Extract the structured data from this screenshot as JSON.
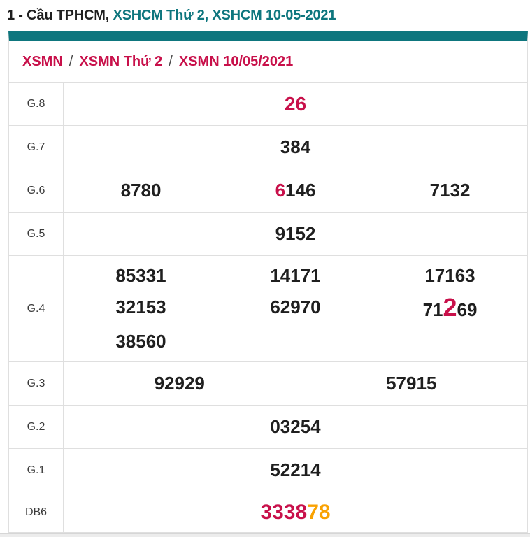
{
  "colors": {
    "teal": "#0e767e",
    "red": "#c8104a",
    "orange": "#f9a202",
    "number_black": "#1f1f1f",
    "border_gray": "#dfdfdf"
  },
  "title": {
    "segments": [
      {
        "text": "1 - Cầu TPHCM, ",
        "style": "dark",
        "link": false
      },
      {
        "text": "XSHCM Thứ 2, ",
        "style": "teal",
        "link": true
      },
      {
        "text": "XSHCM 10-05-2021",
        "style": "teal",
        "link": true
      }
    ]
  },
  "breadcrumb": {
    "separator": "/",
    "items": [
      "XSMN",
      "XSMN Thứ 2",
      "XSMN 10/05/2021"
    ]
  },
  "results_table": {
    "rows": [
      {
        "label": "G.8",
        "cols": 1,
        "size": "g8",
        "lines": [
          [
            [
              {
                "t": "26",
                "c": "red"
              }
            ]
          ]
        ]
      },
      {
        "label": "G.7",
        "cols": 1,
        "lines": [
          [
            [
              {
                "t": "384",
                "c": "black"
              }
            ]
          ]
        ]
      },
      {
        "label": "G.6",
        "cols": 3,
        "lines": [
          [
            [
              {
                "t": "8780",
                "c": "black"
              }
            ],
            [
              {
                "t": "6",
                "c": "red"
              },
              {
                "t": "146",
                "c": "black"
              }
            ],
            [
              {
                "t": "7132",
                "c": "black"
              }
            ]
          ]
        ]
      },
      {
        "label": "G.5",
        "cols": 1,
        "lines": [
          [
            [
              {
                "t": "9152",
                "c": "black"
              }
            ]
          ]
        ]
      },
      {
        "label": "G.4",
        "cols": 3,
        "lines": [
          [
            [
              {
                "t": "85331",
                "c": "black"
              }
            ],
            [
              {
                "t": "14171",
                "c": "black"
              }
            ],
            [
              {
                "t": "17163",
                "c": "black"
              }
            ]
          ],
          [
            [
              {
                "t": "32153",
                "c": "black"
              }
            ],
            [
              {
                "t": "62970",
                "c": "black"
              }
            ],
            [
              {
                "t": "71",
                "c": "black"
              },
              {
                "t": "2",
                "c": "red-big"
              },
              {
                "t": "69",
                "c": "black"
              }
            ]
          ],
          [
            [
              {
                "t": "38560",
                "c": "black"
              }
            ],
            [],
            []
          ]
        ]
      },
      {
        "label": "G.3",
        "cols": 2,
        "lines": [
          [
            [
              {
                "t": "92929",
                "c": "black"
              }
            ],
            [
              {
                "t": "57915",
                "c": "black"
              }
            ]
          ]
        ]
      },
      {
        "label": "G.2",
        "cols": 1,
        "lines": [
          [
            [
              {
                "t": "03254",
                "c": "black"
              }
            ]
          ]
        ]
      },
      {
        "label": "G.1",
        "cols": 1,
        "lines": [
          [
            [
              {
                "t": "52214",
                "c": "black"
              }
            ]
          ]
        ]
      },
      {
        "label": "DB6",
        "cols": 1,
        "size": "db6",
        "lines": [
          [
            [
              {
                "t": "3338",
                "c": "red"
              },
              {
                "t": "78",
                "c": "orange"
              }
            ]
          ]
        ]
      }
    ]
  }
}
